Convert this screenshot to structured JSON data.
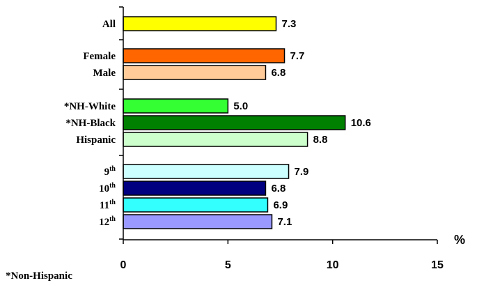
{
  "chart_data": {
    "type": "bar",
    "orientation": "horizontal",
    "categories": [
      {
        "label": "All",
        "sup": "",
        "value": 7.3,
        "value_label": "7.3",
        "color": "#ffff00"
      },
      {
        "label": "Female",
        "sup": "",
        "value": 7.7,
        "value_label": "7.7",
        "color": "#ff6600"
      },
      {
        "label": "Male",
        "sup": "",
        "value": 6.8,
        "value_label": "6.8",
        "color": "#ffcc99"
      },
      {
        "label": "*NH-White",
        "sup": "",
        "value": 5.0,
        "value_label": "5.0",
        "color": "#33ff33"
      },
      {
        "label": "*NH-Black",
        "sup": "",
        "value": 10.6,
        "value_label": "10.6",
        "color": "#008000"
      },
      {
        "label": "Hispanic",
        "sup": "",
        "value": 8.8,
        "value_label": "8.8",
        "color": "#ccffcc"
      },
      {
        "label": "9",
        "sup": "th",
        "value": 7.9,
        "value_label": "7.9",
        "color": "#ccffff"
      },
      {
        "label": "10",
        "sup": "th",
        "value": 6.8,
        "value_label": "6.8",
        "color": "#000080"
      },
      {
        "label": "11",
        "sup": "th",
        "value": 6.9,
        "value_label": "6.9",
        "color": "#33ffff"
      },
      {
        "label": "12",
        "sup": "th",
        "value": 7.1,
        "value_label": "7.1",
        "color": "#9999ff"
      }
    ],
    "groups": [
      [
        0
      ],
      [
        1,
        2
      ],
      [
        3,
        4,
        5
      ],
      [
        6,
        7,
        8,
        9
      ]
    ],
    "xlim": [
      0,
      15
    ],
    "xticks": [
      0,
      5,
      10,
      15
    ],
    "xlabel": "%",
    "grid": false,
    "legend": "none"
  },
  "footnote": "*Non-Hispanic"
}
